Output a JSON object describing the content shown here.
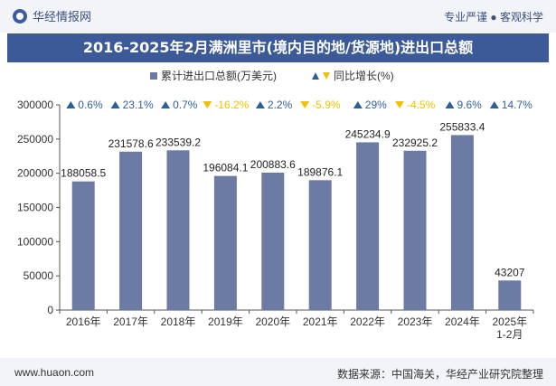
{
  "header": {
    "site_name": "华经情报网",
    "slogan": "专业严谨 ● 客观科学"
  },
  "title": "2016-2025年2月满洲里市(境内目的地/货源地)进出口总额",
  "footer": {
    "url": "www.huaon.com",
    "source": "数据来源：中国海关，华经产业研究院整理"
  },
  "colors": {
    "bar": "#6b7ba3",
    "up": "#2f5f9b",
    "down": "#f2c200",
    "title_bg": "#3c5a97"
  },
  "chart_data": {
    "type": "bar",
    "categories": [
      "2016年",
      "2017年",
      "2018年",
      "2019年",
      "2020年",
      "2021年",
      "2022年",
      "2023年",
      "2024年",
      "2025年\n1-2月"
    ],
    "series": [
      {
        "name": "累计进出口总额(万美元)",
        "values": [
          188058.5,
          231578.6,
          233539.2,
          196084.1,
          200883.6,
          189876.1,
          245234.9,
          232925.2,
          255833.4,
          43207
        ],
        "labels": [
          "188058.5",
          "231578.6",
          "233539.2",
          "196084.1",
          "200883.6",
          "189876.1",
          "245234.9",
          "232925.2",
          "255833.4",
          "43207"
        ]
      },
      {
        "name": "同比增长(%)",
        "values": [
          0.6,
          23.1,
          0.7,
          -16.2,
          2.2,
          -5.9,
          29,
          -4.5,
          9.6,
          14.7
        ],
        "labels": [
          "0.6%",
          "23.1%",
          "0.7%",
          "-16.2%",
          "2.2%",
          "-5.9%",
          "29%",
          "-4.5%",
          "9.6%",
          "14.7%"
        ]
      }
    ],
    "ylim": [
      0,
      300000
    ],
    "yticks": [
      0,
      50000,
      100000,
      150000,
      200000,
      250000,
      300000
    ],
    "legend_position": "top-center",
    "grid": false
  }
}
